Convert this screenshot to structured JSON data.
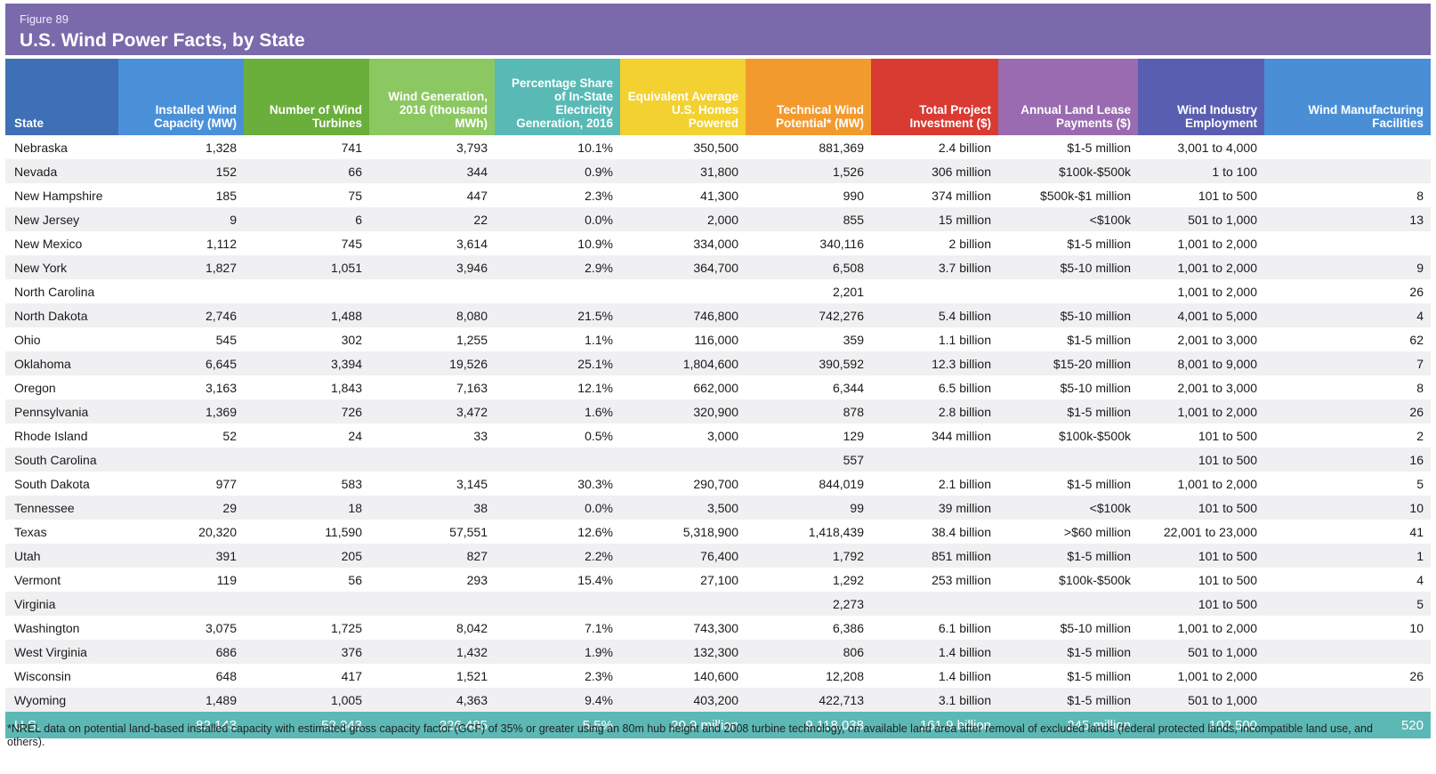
{
  "figure": {
    "label": "Figure 89",
    "title": "U.S. Wind Power Facts, by State"
  },
  "colors": {
    "title_bg": "#7a6aab",
    "total_bg": "#5bb8b5",
    "header": [
      "#3f6fb5",
      "#4a90d9",
      "#6aae3c",
      "#8cc862",
      "#59bab5",
      "#f2d130",
      "#f29a2e",
      "#d93a32",
      "#9a6bb0",
      "#5a5eb0",
      "#4a8fd6"
    ]
  },
  "headers": [
    "State",
    "Installed Wind Capacity (MW)",
    "Number of Wind Turbines",
    "Wind Generation, 2016 (thousand MWh)",
    "Percentage Share of In-State Electricity Generation, 2016",
    "Equivalent Average U.S. Homes Powered",
    "Technical Wind Potential* (MW)",
    "Total Project Investment ($)",
    "Annual Land Lease Payments ($)",
    "Wind Industry Employment",
    "Wind Manufacturing Facilities"
  ],
  "rows": [
    [
      "Nebraska",
      "1,328",
      "741",
      "3,793",
      "10.1%",
      "350,500",
      "881,369",
      "2.4 billion",
      "$1-5 million",
      "3,001 to 4,000",
      ""
    ],
    [
      "Nevada",
      "152",
      "66",
      "344",
      "0.9%",
      "31,800",
      "1,526",
      "306 million",
      "$100k-$500k",
      "1 to 100",
      ""
    ],
    [
      "New Hampshire",
      "185",
      "75",
      "447",
      "2.3%",
      "41,300",
      "990",
      "374 million",
      "$500k-$1 million",
      "101 to 500",
      "8"
    ],
    [
      "New Jersey",
      "9",
      "6",
      "22",
      "0.0%",
      "2,000",
      "855",
      "15 million",
      "<$100k",
      "501 to 1,000",
      "13"
    ],
    [
      "New Mexico",
      "1,112",
      "745",
      "3,614",
      "10.9%",
      "334,000",
      "340,116",
      "2 billion",
      "$1-5 million",
      "1,001 to 2,000",
      ""
    ],
    [
      "New York",
      "1,827",
      "1,051",
      "3,946",
      "2.9%",
      "364,700",
      "6,508",
      "3.7 billion",
      "$5-10 million",
      "1,001 to 2,000",
      "9"
    ],
    [
      "North Carolina",
      "",
      "",
      "",
      "",
      "",
      "2,201",
      "",
      "",
      "1,001 to 2,000",
      "26"
    ],
    [
      "North Dakota",
      "2,746",
      "1,488",
      "8,080",
      "21.5%",
      "746,800",
      "742,276",
      "5.4 billion",
      "$5-10 million",
      "4,001 to 5,000",
      "4"
    ],
    [
      "Ohio",
      "545",
      "302",
      "1,255",
      "1.1%",
      "116,000",
      "359",
      "1.1 billion",
      "$1-5 million",
      "2,001 to 3,000",
      "62"
    ],
    [
      "Oklahoma",
      "6,645",
      "3,394",
      "19,526",
      "25.1%",
      "1,804,600",
      "390,592",
      "12.3 billion",
      "$15-20 million",
      "8,001 to 9,000",
      "7"
    ],
    [
      "Oregon",
      "3,163",
      "1,843",
      "7,163",
      "12.1%",
      "662,000",
      "6,344",
      "6.5 billion",
      "$5-10 million",
      "2,001 to 3,000",
      "8"
    ],
    [
      "Pennsylvania",
      "1,369",
      "726",
      "3,472",
      "1.6%",
      "320,900",
      "878",
      "2.8 billion",
      "$1-5 million",
      "1,001 to 2,000",
      "26"
    ],
    [
      "Rhode Island",
      "52",
      "24",
      "33",
      "0.5%",
      "3,000",
      "129",
      "344 million",
      "$100k-$500k",
      "101 to 500",
      "2"
    ],
    [
      "South Carolina",
      "",
      "",
      "",
      "",
      "",
      "557",
      "",
      "",
      "101 to 500",
      "16"
    ],
    [
      "South Dakota",
      "977",
      "583",
      "3,145",
      "30.3%",
      "290,700",
      "844,019",
      "2.1 billion",
      "$1-5 million",
      "1,001 to 2,000",
      "5"
    ],
    [
      "Tennessee",
      "29",
      "18",
      "38",
      "0.0%",
      "3,500",
      "99",
      "39 million",
      "<$100k",
      "101 to 500",
      "10"
    ],
    [
      "Texas",
      "20,320",
      "11,590",
      "57,551",
      "12.6%",
      "5,318,900",
      "1,418,439",
      "38.4 billion",
      ">$60 million",
      "22,001 to 23,000",
      "41"
    ],
    [
      "Utah",
      "391",
      "205",
      "827",
      "2.2%",
      "76,400",
      "1,792",
      "851 million",
      "$1-5 million",
      "101 to 500",
      "1"
    ],
    [
      "Vermont",
      "119",
      "56",
      "293",
      "15.4%",
      "27,100",
      "1,292",
      "253 million",
      "$100k-$500k",
      "101 to 500",
      "4"
    ],
    [
      "Virginia",
      "",
      "",
      "",
      "",
      "",
      "2,273",
      "",
      "",
      "101 to 500",
      "5"
    ],
    [
      "Washington",
      "3,075",
      "1,725",
      "8,042",
      "7.1%",
      "743,300",
      "6,386",
      "6.1 billion",
      "$5-10 million",
      "1,001 to 2,000",
      "10"
    ],
    [
      "West Virginia",
      "686",
      "376",
      "1,432",
      "1.9%",
      "132,300",
      "806",
      "1.4 billion",
      "$1-5 million",
      "501 to 1,000",
      ""
    ],
    [
      "Wisconsin",
      "648",
      "417",
      "1,521",
      "2.3%",
      "140,600",
      "12,208",
      "1.4 billion",
      "$1-5 million",
      "1,001 to 2,000",
      "26"
    ],
    [
      "Wyoming",
      "1,489",
      "1,005",
      "4,363",
      "9.4%",
      "403,200",
      "422,713",
      "3.1 billion",
      "$1-5 million",
      "501 to 1,000",
      ""
    ]
  ],
  "total": [
    "U.S.",
    "82,143",
    "52,343",
    "226,485",
    "5.5%",
    "20.9 million",
    "9,118,038",
    "161.9 billion",
    "245 million",
    "102,500",
    "520"
  ],
  "footnote": "*NREL data on potential land-based installed capacity with estimated gross capacity factor (GCF) of 35% or greater using an 80m hub height and 2008 turbine technology, on available land area after removal of excluded lands (federal protected lands, incompatible land use, and others)."
}
